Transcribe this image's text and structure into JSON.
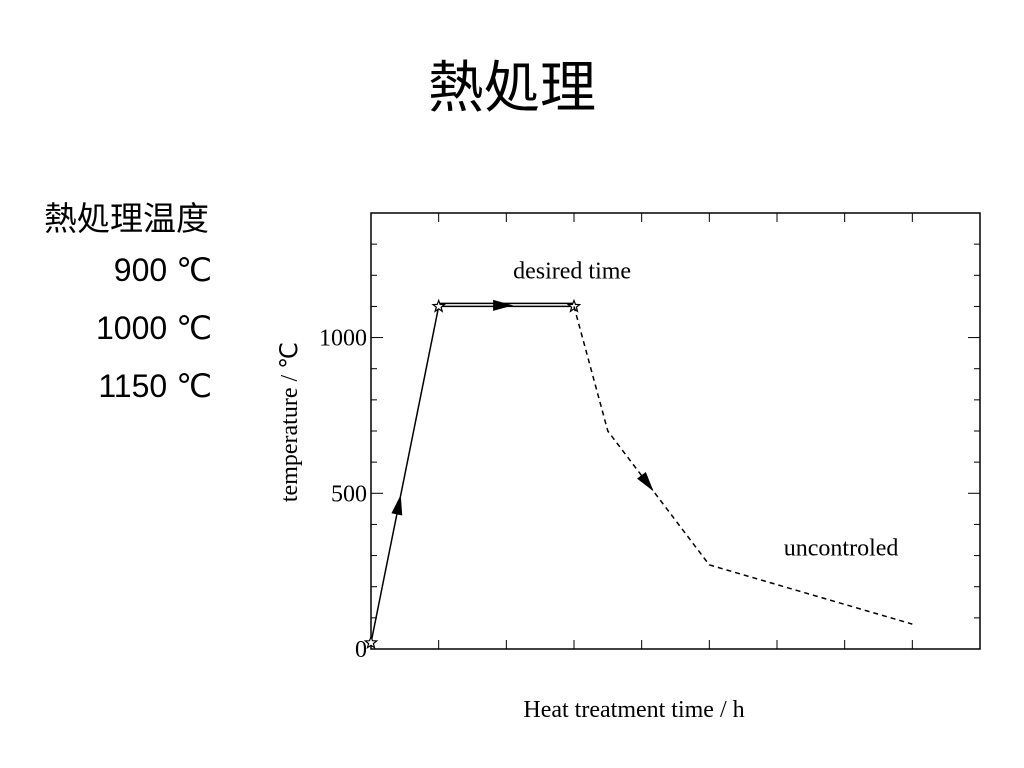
{
  "slide": {
    "title": "熱処理",
    "side_heading": "熱処理温度",
    "temperatures": [
      "900 ℃",
      "1000 ℃",
      "1150 ℃"
    ]
  },
  "chart_data": {
    "type": "line",
    "title": "",
    "xlabel": "Heat treatment time / h",
    "ylabel": "temperature / ℃",
    "xlim": [
      0,
      9
    ],
    "ylim": [
      0,
      1400
    ],
    "yticks": [
      0,
      500,
      1000
    ],
    "ytick_labels": [
      "0",
      "500",
      "1000"
    ],
    "xtick_labels": [],
    "series": [
      {
        "style": "solid",
        "x": [
          0,
          1,
          3
        ],
        "y": [
          20,
          1100,
          1100
        ],
        "markers": "star"
      },
      {
        "style": "dashed",
        "x": [
          3,
          3.5,
          5,
          8
        ],
        "y": [
          1100,
          700,
          270,
          80
        ]
      }
    ],
    "annotations": [
      {
        "text": "desired time",
        "x": 2.1,
        "y": 1190
      },
      {
        "text": "uncontroled",
        "x": 6.1,
        "y": 300
      }
    ],
    "grid": false
  }
}
